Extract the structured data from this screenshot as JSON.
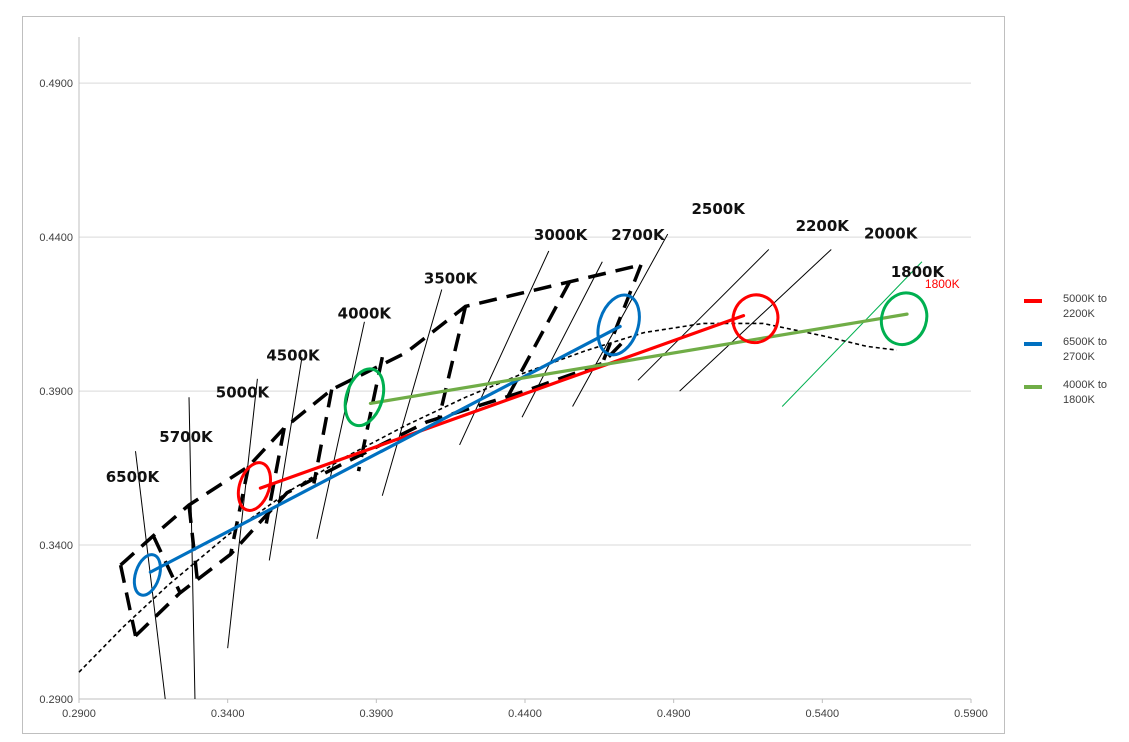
{
  "chart_data": {
    "type": "scatter",
    "title": "",
    "xlabel": "",
    "ylabel": "",
    "xlim": [
      0.29,
      0.59
    ],
    "ylim": [
      0.29,
      0.505
    ],
    "x_ticks": [
      "0.2900",
      "0.3400",
      "0.3900",
      "0.4400",
      "0.4900",
      "0.5400",
      "0.5900"
    ],
    "y_ticks": [
      "0.2900",
      "0.3400",
      "0.3900",
      "0.4400",
      "0.4900"
    ],
    "grid": "horizontal",
    "legend_position": "right",
    "planckian_locus": {
      "style": "dotted",
      "x": [
        0.29,
        0.305,
        0.32,
        0.34,
        0.36,
        0.38,
        0.4,
        0.42,
        0.44,
        0.46,
        0.48,
        0.5,
        0.52,
        0.54,
        0.555,
        0.565
      ],
      "y": [
        0.2987,
        0.3135,
        0.327,
        0.3432,
        0.3571,
        0.3688,
        0.3789,
        0.388,
        0.396,
        0.403,
        0.409,
        0.412,
        0.412,
        0.408,
        0.4045,
        0.4033
      ]
    },
    "isotherms": [
      {
        "label": "6500K",
        "x1": 0.309,
        "y1": 0.3705,
        "x2": 0.319,
        "y2": 0.29,
        "label_x": 0.299,
        "label_y": 0.3605,
        "color": "#000000",
        "label_color": "#111111"
      },
      {
        "label": "5700K",
        "x1": 0.327,
        "y1": 0.388,
        "x2": 0.329,
        "y2": 0.29,
        "label_x": 0.317,
        "label_y": 0.3735,
        "color": "#000000",
        "label_color": "#111111"
      },
      {
        "label": "5000K",
        "x1": 0.35,
        "y1": 0.394,
        "x2": 0.34,
        "y2": 0.3065,
        "label_x": 0.336,
        "label_y": 0.388,
        "color": "#000000",
        "label_color": "#111111"
      },
      {
        "label": "4500K",
        "x1": 0.365,
        "y1": 0.401,
        "x2": 0.354,
        "y2": 0.335,
        "label_x": 0.353,
        "label_y": 0.4,
        "color": "#000000",
        "label_color": "#111111"
      },
      {
        "label": "4000K",
        "x1": 0.386,
        "y1": 0.4125,
        "x2": 0.37,
        "y2": 0.342,
        "label_x": 0.377,
        "label_y": 0.4135,
        "color": "#000000",
        "label_color": "#111111"
      },
      {
        "label": "3500K",
        "x1": 0.412,
        "y1": 0.423,
        "x2": 0.392,
        "y2": 0.356,
        "label_x": 0.406,
        "label_y": 0.425,
        "color": "#000000",
        "label_color": "#111111"
      },
      {
        "label": "3000K",
        "x1": 0.448,
        "y1": 0.4355,
        "x2": 0.418,
        "y2": 0.3725,
        "label_x": 0.443,
        "label_y": 0.439,
        "color": "#000000",
        "label_color": "#111111"
      },
      {
        "label": "2700K",
        "x1": 0.466,
        "y1": 0.432,
        "x2": 0.439,
        "y2": 0.3815,
        "label_x": 0.469,
        "label_y": 0.439,
        "color": "#000000",
        "label_color": "#111111"
      },
      {
        "label": "2500K",
        "x1": 0.488,
        "y1": 0.441,
        "x2": 0.456,
        "y2": 0.385,
        "label_x": 0.496,
        "label_y": 0.4475,
        "color": "#000000",
        "label_color": "#111111"
      },
      {
        "label": "2200K",
        "x1": 0.522,
        "y1": 0.436,
        "x2": 0.478,
        "y2": 0.3935,
        "label_x": 0.531,
        "label_y": 0.442,
        "color": "#000000",
        "label_color": "#111111"
      },
      {
        "label": "2000K",
        "x1": 0.543,
        "y1": 0.436,
        "x2": 0.492,
        "y2": 0.39,
        "label_x": 0.554,
        "label_y": 0.4395,
        "color": "#000000",
        "label_color": "#111111"
      },
      {
        "label": "1800K",
        "x1": 0.5735,
        "y1": 0.432,
        "x2": 0.5265,
        "y2": 0.385,
        "label_x": 0.563,
        "label_y": 0.427,
        "color": "#00b050",
        "label_color": "#111111"
      }
    ],
    "quadrangle_boundaries": {
      "style": "dashed",
      "polylines": [
        [
          [
            0.304,
            0.3335
          ],
          [
            0.315,
            0.343
          ],
          [
            0.327,
            0.353
          ],
          [
            0.347,
            0.3655
          ],
          [
            0.359,
            0.378
          ],
          [
            0.375,
            0.3905
          ],
          [
            0.4,
            0.4025
          ],
          [
            0.42,
            0.4175
          ],
          [
            0.455,
            0.4255
          ],
          [
            0.479,
            0.431
          ]
        ],
        [
          [
            0.309,
            0.3105
          ],
          [
            0.324,
            0.3245
          ],
          [
            0.341,
            0.337
          ],
          [
            0.36,
            0.357
          ],
          [
            0.38,
            0.367
          ],
          [
            0.407,
            0.38
          ],
          [
            0.44,
            0.39
          ],
          [
            0.466,
            0.399
          ],
          [
            0.474,
            0.407
          ]
        ],
        [
          [
            0.304,
            0.3335
          ],
          [
            0.309,
            0.3105
          ]
        ],
        [
          [
            0.315,
            0.343
          ],
          [
            0.324,
            0.3245
          ]
        ],
        [
          [
            0.327,
            0.353
          ],
          [
            0.33,
            0.327
          ]
        ],
        [
          [
            0.347,
            0.3655
          ],
          [
            0.341,
            0.337
          ]
        ],
        [
          [
            0.359,
            0.378
          ],
          [
            0.353,
            0.347
          ]
        ],
        [
          [
            0.375,
            0.3905
          ],
          [
            0.369,
            0.36
          ]
        ],
        [
          [
            0.392,
            0.401
          ],
          [
            0.384,
            0.364
          ]
        ],
        [
          [
            0.42,
            0.4175
          ],
          [
            0.411,
            0.381
          ]
        ],
        [
          [
            0.455,
            0.4255
          ],
          [
            0.433,
            0.386
          ]
        ],
        [
          [
            0.479,
            0.431
          ],
          [
            0.466,
            0.399
          ]
        ]
      ]
    },
    "series": [
      {
        "name": "5000K to 2200K",
        "color": "#ff0000",
        "x": [
          0.351,
          0.5135
        ],
        "y": [
          0.3585,
          0.4145
        ]
      },
      {
        "name": "6500K to 2700K",
        "color": "#0070c0",
        "x": [
          0.314,
          0.472
        ],
        "y": [
          0.3312,
          0.411
        ]
      },
      {
        "name": "4000K to 1800K",
        "color": "#70ad47",
        "x": [
          0.388,
          0.5685
        ],
        "y": [
          0.386,
          0.415
        ]
      }
    ],
    "target_ellipses": [
      {
        "cct": "6500K",
        "color": "#0070c0",
        "cx": 0.313,
        "cy": 0.3303,
        "rx": 0.004,
        "ry": 0.0068
      },
      {
        "cct": "5000K",
        "color": "#ff0000",
        "cx": 0.349,
        "cy": 0.359,
        "rx": 0.005,
        "ry": 0.008
      },
      {
        "cct": "4000K",
        "color": "#00b050",
        "cx": 0.386,
        "cy": 0.388,
        "rx": 0.006,
        "ry": 0.0095
      },
      {
        "cct": "2700K",
        "color": "#0070c0",
        "cx": 0.4715,
        "cy": 0.4115,
        "rx": 0.0065,
        "ry": 0.01
      },
      {
        "cct": "2200K",
        "color": "#ff0000",
        "cx": 0.5175,
        "cy": 0.4135,
        "rx": 0.0075,
        "ry": 0.0078
      },
      {
        "cct": "1800K",
        "color": "#00b050",
        "cx": 0.5675,
        "cy": 0.4135,
        "rx": 0.0075,
        "ry": 0.0085
      }
    ],
    "annotations": [
      {
        "text": "1800K",
        "x": 0.5745,
        "y": 0.4235,
        "color": "#ff0000"
      }
    ]
  }
}
